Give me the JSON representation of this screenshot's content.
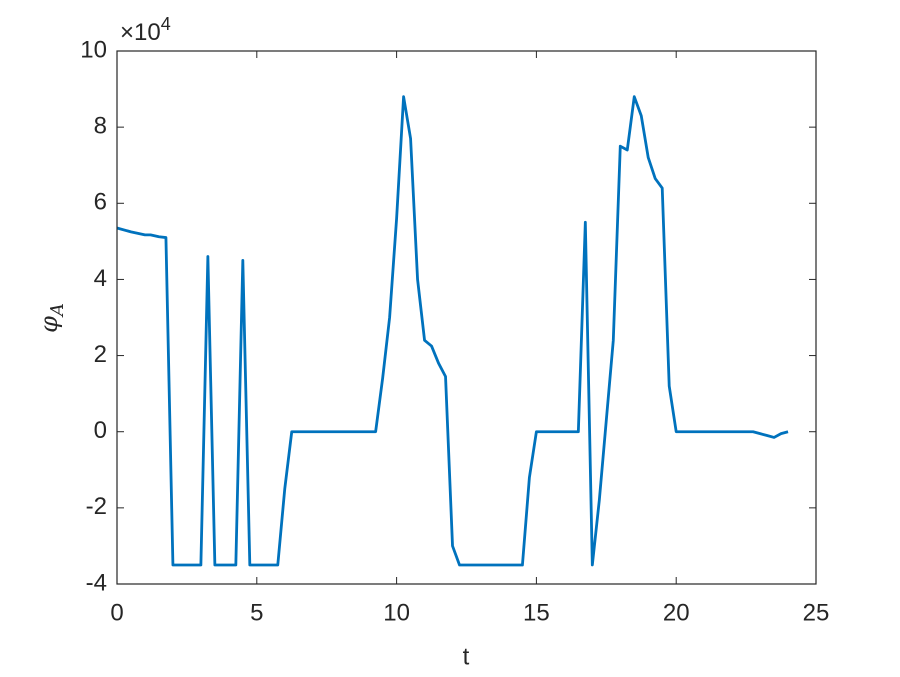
{
  "chart_data": {
    "type": "line",
    "xlabel": "t",
    "ylabel": {
      "symbol": "φ",
      "subscript": "A"
    },
    "y_multiplier": {
      "base": "×10",
      "exponent": "4"
    },
    "x": [
      0,
      0.5,
      1.0,
      1.2,
      1.5,
      1.75,
      2.0,
      3.0,
      3.25,
      3.5,
      4.25,
      4.5,
      4.75,
      5.75,
      6.0,
      6.25,
      9.25,
      9.5,
      9.75,
      10.0,
      10.25,
      10.5,
      10.75,
      11.0,
      11.25,
      11.5,
      11.75,
      12.0,
      12.25,
      14.5,
      14.75,
      15.0,
      16.5,
      16.75,
      17.0,
      17.25,
      17.5,
      17.75,
      18.0,
      18.25,
      18.5,
      18.75,
      19.0,
      19.25,
      19.5,
      19.75,
      20.0,
      22.75,
      23.0,
      23.25,
      23.5,
      23.75,
      24.0
    ],
    "values": [
      5.35,
      5.25,
      5.17,
      5.17,
      5.12,
      5.1,
      -3.5,
      -3.5,
      4.6,
      -3.5,
      -3.5,
      4.5,
      -3.5,
      -3.5,
      -1.5,
      0,
      0,
      1.4,
      3.0,
      5.6,
      8.8,
      7.7,
      4.0,
      2.4,
      2.25,
      1.8,
      1.45,
      -3.0,
      -3.5,
      -3.5,
      -1.2,
      0,
      0,
      5.5,
      -3.5,
      -1.8,
      0.3,
      2.4,
      7.5,
      7.4,
      8.8,
      8.3,
      7.2,
      6.65,
      6.4,
      1.2,
      0,
      0,
      -0.05,
      -0.1,
      -0.15,
      -0.05,
      0
    ],
    "color": "#0072bd",
    "xlim": [
      0,
      25
    ],
    "xticks": [
      0,
      5,
      10,
      15,
      20,
      25
    ],
    "ylim": [
      -4,
      10
    ],
    "yticks": [
      -4,
      -2,
      0,
      2,
      4,
      6,
      8,
      10
    ]
  }
}
